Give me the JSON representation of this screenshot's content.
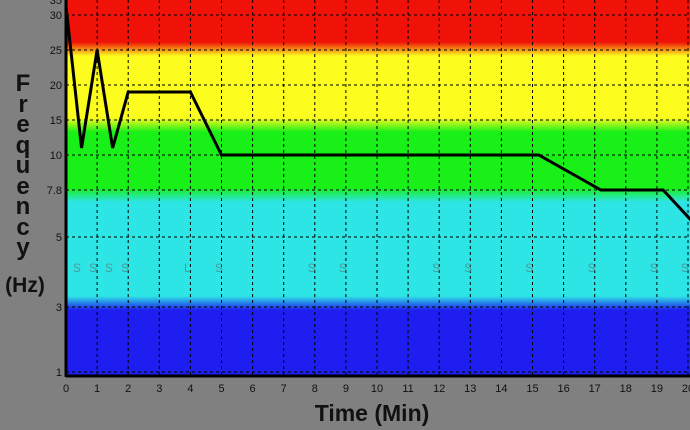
{
  "chart_data": {
    "type": "line",
    "title": "",
    "xlabel": "Time (Min)",
    "ylabel_letters": [
      "F",
      "r",
      "e",
      "q",
      "u",
      "e",
      "n",
      "c",
      "y"
    ],
    "ylabel_unit": "(Hz)",
    "xlim": [
      0,
      20.2
    ],
    "ylim": [
      1,
      35
    ],
    "x_ticks": [
      "0",
      "1",
      "2",
      "3",
      "4",
      "5",
      "6",
      "7",
      "8",
      "9",
      "10",
      "11",
      "12",
      "13",
      "14",
      "15",
      "16",
      "17",
      "18",
      "19",
      "20"
    ],
    "y_ticks": [
      "35",
      "30",
      "25",
      "20",
      "15",
      "10",
      "7.8",
      "5",
      "3",
      "1"
    ],
    "grid": true,
    "bands": [
      {
        "name": "red",
        "from": 25,
        "to": 35,
        "color": "#f01208"
      },
      {
        "name": "yellow",
        "from": 13,
        "to": 25,
        "color": "#fcfc1e"
      },
      {
        "name": "green",
        "from": 7.5,
        "to": 13,
        "color": "#18f018"
      },
      {
        "name": "cyan",
        "from": 3,
        "to": 7.5,
        "color": "#2ee5e5"
      },
      {
        "name": "blue",
        "from": 1,
        "to": 3,
        "color": "#1e1ef0"
      }
    ],
    "series": [
      {
        "name": "frequency",
        "color": "#000000",
        "x": [
          0,
          0.5,
          1,
          1.5,
          2,
          4,
          5,
          15.2,
          17.2,
          19.2,
          20.1
        ],
        "y": [
          33,
          11,
          25,
          11,
          19,
          19,
          10,
          10,
          7.8,
          7.8,
          6
        ]
      }
    ],
    "markers": [
      {
        "x": 0.35,
        "label": "S"
      },
      {
        "x": 0.87,
        "label": "S"
      },
      {
        "x": 1.38,
        "label": "S"
      },
      {
        "x": 1.9,
        "label": "S"
      },
      {
        "x": 3.9,
        "label": "L"
      },
      {
        "x": 4.92,
        "label": "S"
      },
      {
        "x": 7.9,
        "label": "S"
      },
      {
        "x": 8.9,
        "label": "S"
      },
      {
        "x": 11.9,
        "label": "S"
      },
      {
        "x": 12.93,
        "label": "S"
      },
      {
        "x": 14.9,
        "label": "S"
      },
      {
        "x": 16.9,
        "label": "S"
      },
      {
        "x": 18.9,
        "label": "S"
      },
      {
        "x": 19.9,
        "label": "S"
      }
    ],
    "marker_y": 4.2
  }
}
